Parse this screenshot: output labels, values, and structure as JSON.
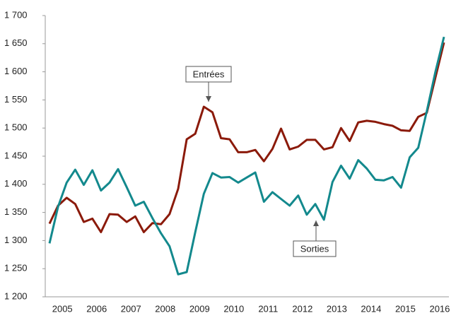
{
  "chart_data": {
    "type": "line",
    "categories": [
      null,
      "2005",
      null,
      null,
      null,
      "2006",
      null,
      null,
      null,
      "2007",
      null,
      null,
      null,
      "2008",
      null,
      null,
      null,
      "2009",
      null,
      null,
      null,
      "2010",
      null,
      null,
      null,
      "2011",
      null,
      null,
      null,
      "2012",
      null,
      null,
      null,
      "2013",
      null,
      null,
      null,
      "2014",
      null,
      null,
      null,
      "2015",
      null,
      null,
      null,
      "2016",
      null
    ],
    "series": [
      {
        "name": "Entrées",
        "color": "#8b1a0a",
        "values": [
          1330,
          1362,
          1376,
          1365,
          1333,
          1339,
          1315,
          1347,
          1346,
          1333,
          1343,
          1315,
          1331,
          1329,
          1347,
          1392,
          1480,
          1490,
          1538,
          1528,
          1482,
          1480,
          1457,
          1457,
          1461,
          1441,
          1463,
          1499,
          1462,
          1467,
          1479,
          1479,
          1462,
          1466,
          1500,
          1477,
          1510,
          1513,
          1511,
          1507,
          1504,
          1496,
          1495,
          1520,
          1527,
          1590,
          1652
        ]
      },
      {
        "name": "Sorties",
        "color": "#13898d",
        "values": [
          1295,
          1360,
          1403,
          1426,
          1399,
          1425,
          1389,
          1403,
          1427,
          1395,
          1362,
          1369,
          1340,
          1313,
          1290,
          1240,
          1244,
          1315,
          1383,
          1420,
          1412,
          1413,
          1403,
          1412,
          1421,
          1369,
          1386,
          1374,
          1362,
          1380,
          1346,
          1365,
          1337,
          1404,
          1433,
          1410,
          1443,
          1428,
          1408,
          1407,
          1413,
          1394,
          1448,
          1465,
          1530,
          1600,
          1662
        ]
      }
    ],
    "ylim": [
      1200,
      1700
    ],
    "yticks": [
      {
        "value": 1200,
        "label": "1 200"
      },
      {
        "value": 1250,
        "label": "1 250"
      },
      {
        "value": 1300,
        "label": "1 300"
      },
      {
        "value": 1350,
        "label": "1 350"
      },
      {
        "value": 1400,
        "label": "1 400"
      },
      {
        "value": 1450,
        "label": "1 450"
      },
      {
        "value": 1500,
        "label": "1 500"
      },
      {
        "value": 1550,
        "label": "1 550"
      },
      {
        "value": 1600,
        "label": "1 600"
      },
      {
        "value": 1650,
        "label": "1 650"
      },
      {
        "value": 1700,
        "label": "1 700"
      }
    ],
    "grid": false
  }
}
